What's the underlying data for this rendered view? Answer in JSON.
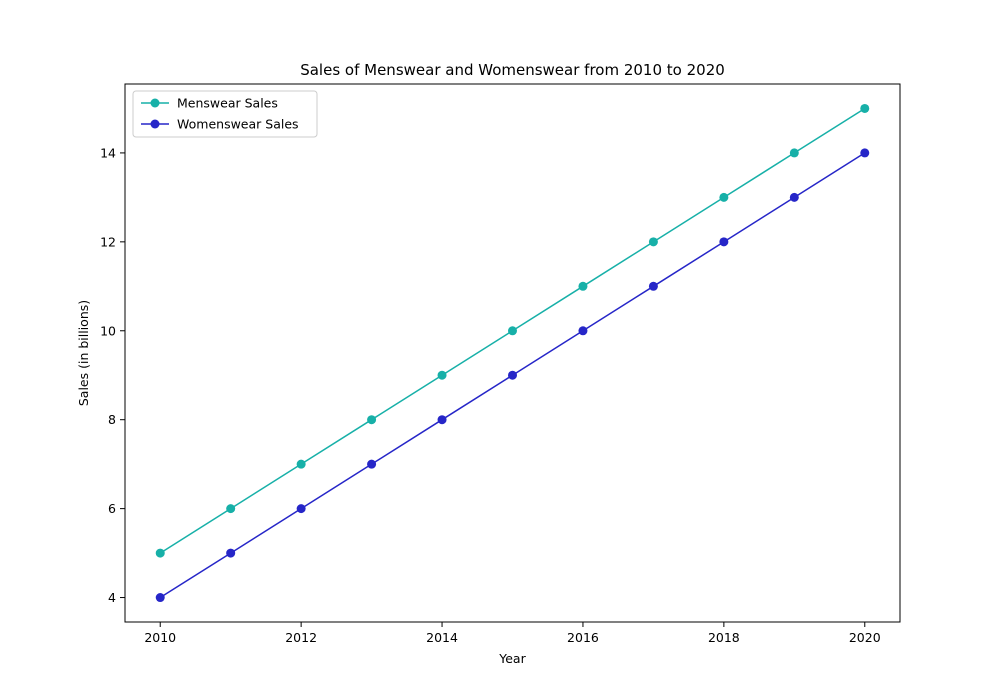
{
  "chart_data": {
    "type": "line",
    "title": "Sales of Menswear and Womenswear from 2010 to 2020",
    "xlabel": "Year",
    "ylabel": "Sales (in billions)",
    "x": [
      2010,
      2011,
      2012,
      2013,
      2014,
      2015,
      2016,
      2017,
      2018,
      2019,
      2020
    ],
    "xlim": [
      2009.5,
      2020.5
    ],
    "ylim": [
      3.45,
      15.55
    ],
    "xticks": [
      2010,
      2012,
      2014,
      2016,
      2018,
      2020
    ],
    "yticks": [
      4,
      6,
      8,
      10,
      12,
      14
    ],
    "grid": false,
    "legend_position": "top-left",
    "series": [
      {
        "name": "Menswear Sales",
        "color": "#17b0a8",
        "marker": "circle",
        "values": [
          5,
          6,
          7,
          8,
          9,
          10,
          11,
          12,
          13,
          14,
          15
        ]
      },
      {
        "name": "Womenswear Sales",
        "color": "#2626c8",
        "marker": "circle",
        "values": [
          4,
          5,
          6,
          7,
          8,
          9,
          10,
          11,
          12,
          13,
          14
        ]
      }
    ]
  }
}
